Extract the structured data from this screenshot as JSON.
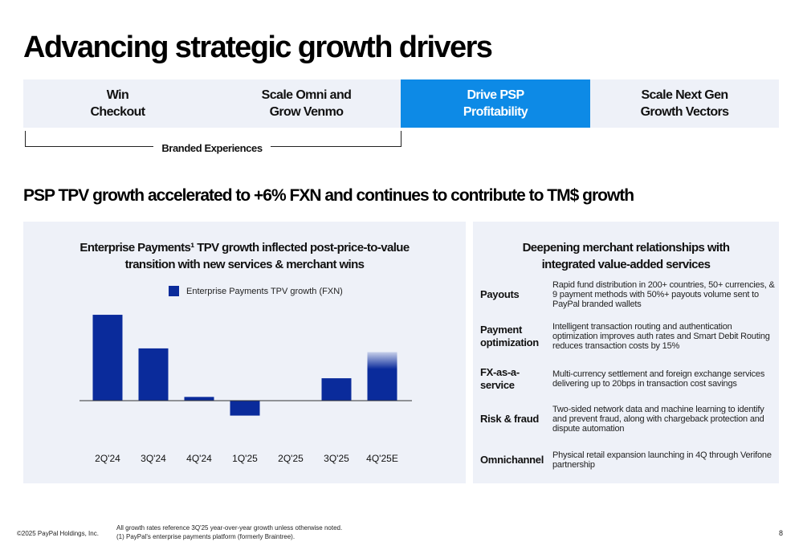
{
  "title": "Advancing strategic growth drivers",
  "pillars": [
    {
      "line1": "Win",
      "line2": "Checkout"
    },
    {
      "line1": "Scale Omni and",
      "line2": "Grow Venmo"
    },
    {
      "line1": "Drive PSP",
      "line2": "Profitability"
    },
    {
      "line1": "Scale Next Gen",
      "line2": "Growth Vectors"
    }
  ],
  "bracket_label": "Branded Experiences",
  "section_title": "PSP TPV growth accelerated to +6% FXN and continues to contribute to TM$ growth",
  "colors": {
    "highlight": "#0d8ae6",
    "bar": "#0a2b9b",
    "panel": "#eef1f8"
  },
  "left_panel": {
    "title_line1": "Enterprise Payments¹ TPV growth inflected post-price-to-value",
    "title_line2": "transition with new services & merchant wins"
  },
  "chart_data": {
    "type": "bar",
    "categories": [
      "2Q'24",
      "3Q'24",
      "4Q'24",
      "1Q'25",
      "2Q'25",
      "3Q'25",
      "4Q'25E"
    ],
    "series": [
      {
        "name": "Enterprise Payments TPV growth (FXN)",
        "values": [
          23,
          14,
          1,
          -4,
          0,
          6,
          13
        ]
      }
    ],
    "estimate_categories": [
      "4Q'25E"
    ],
    "ylim": [
      -12,
      25
    ],
    "grid": false,
    "legend_position": "top-center"
  },
  "right_panel": {
    "title_line1": "Deepening merchant relationships with",
    "title_line2": "integrated value-added services",
    "services": [
      {
        "label": "Payouts",
        "desc": "Rapid fund distribution in 200+ countries, 50+ currencies, & 9 payment methods with 50%+ payouts volume sent to PayPal branded wallets"
      },
      {
        "label": "Payment optimization",
        "desc": "Intelligent transaction routing and authentication optimization improves auth rates and Smart Debit Routing reduces transaction costs by 15%"
      },
      {
        "label": "FX-as-a-service",
        "desc": "Multi-currency settlement and foreign exchange services delivering up to 20bps in transaction cost savings"
      },
      {
        "label": "Risk & fraud",
        "desc": "Two-sided network data and machine learning to identify and prevent fraud, along with chargeback protection and dispute automation"
      },
      {
        "label": "Omnichannel",
        "desc": "Physical retail expansion launching in 4Q through Verifone partnership"
      }
    ]
  },
  "footer": {
    "copyright": "©2025 PayPal Holdings, Inc.",
    "note1": "All growth rates reference 3Q'25 year-over-year growth unless otherwise noted.",
    "note2": "(1) PayPal's enterprise payments platform (formerly Braintree).",
    "page_number": "8"
  }
}
